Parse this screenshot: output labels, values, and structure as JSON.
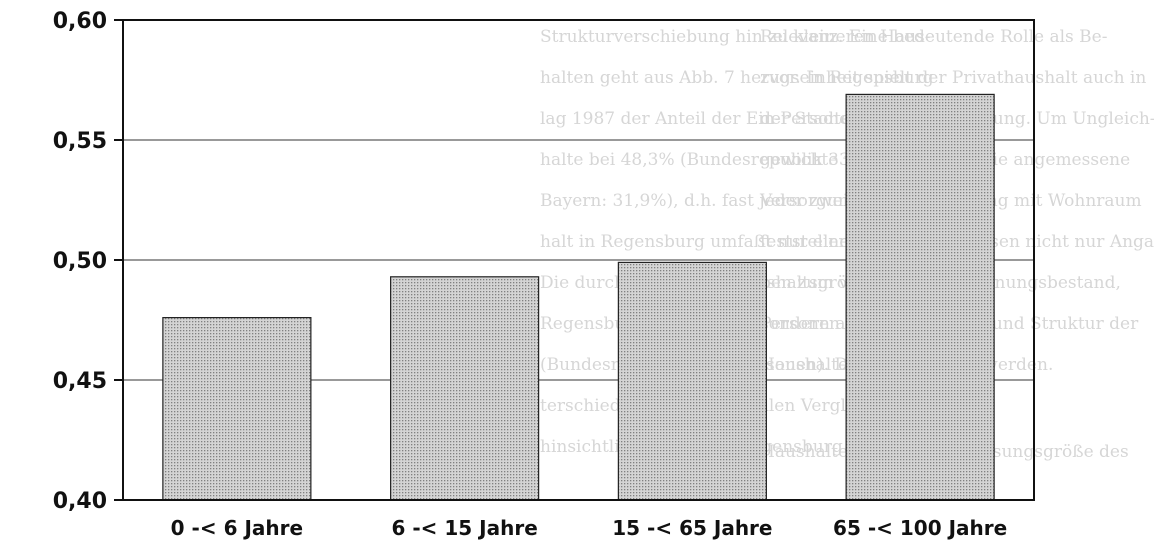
{
  "chart_data": {
    "type": "bar",
    "title": "",
    "xlabel": "",
    "ylabel": "",
    "categories": [
      "0 -< 6 Jahre",
      "6 -< 15 Jahre",
      "15 -< 65 Jahre",
      "65 -< 100 Jahre"
    ],
    "values": [
      0.476,
      0.493,
      0.499,
      0.569
    ],
    "ylim": [
      0.4,
      0.6
    ],
    "yticks": [
      0.4,
      0.45,
      0.5,
      0.55,
      0.6
    ],
    "ytick_labels": [
      "0,40",
      "0,45",
      "0,50",
      "0,55",
      "0,60"
    ],
    "grid": true,
    "bar_fill": "dotted-gray",
    "colors": {
      "bar_fill": "#cfcfcf",
      "bar_dots": "#8a8a8a",
      "bar_stroke": "#222222",
      "axis": "#111111",
      "grid": "#333333"
    }
  },
  "background_text": [
    "Strukturverschiebung hin zu kleineren Haus-",
    "halten geht aus Abb. 7 hervor. In Regensburg",
    "lag 1987 der Anteil der Ein-Personen-Haus-",
    "halte bei 48,3% (Bundesrepublik 33,4%;",
    "Bayern: 31,9%), d.h. fast jeder zweite Haus-",
    "halt in Regensburg umfaßt nur eine Person.",
    "Die durchschnittliche Haushaltsgröße liegt in",
    "Regensburg bei nur 1,99 Personen",
    "(Bundesrepublik: 2,31 Personen). Diese Un-",
    "terschiede im überregionalen Vergleich sind",
    "hinsichtlich mit den in Regensburg über-",
    "Relevanz. Eine bedeutende Rolle als Be-",
    "zugseinheit spielt der Privathaushalt auch in",
    "der Stadtentwicklungsplanung. Um Ungleich-",
    "gewichte im Hinblick auf die angemessene",
    "Versorgung der Bevölkerung mit Wohnraum",
    "feststellen zu können, müssen nicht nur Anga-",
    "ben zum vorhandenen Wohnungsbestand,",
    "sondern auch über Anzahl und Struktur der",
    "Haushalte berücksichtigt werden.",
    "Haushalte sind keine Erfassungsgröße des"
  ]
}
